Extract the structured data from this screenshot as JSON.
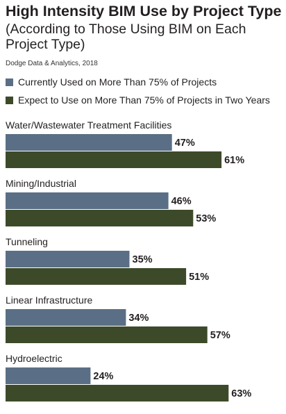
{
  "chart_data": {
    "type": "bar",
    "orientation": "horizontal",
    "title": "High Intensity BIM Use by Project Type",
    "subtitle": "(According to Those Using BIM on Each Project Type)",
    "source": "Dodge Data & Analytics, 2018",
    "categories": [
      "Water/Wastewater Treatment Facilities",
      "Mining/Industrial",
      "Tunneling",
      "Linear Infrastructure",
      "Hydroelectric"
    ],
    "series": [
      {
        "name": "Currently Used on More Than 75% of Projects",
        "values": [
          47,
          46,
          35,
          34,
          24
        ],
        "color": "#5a6f85"
      },
      {
        "name": "Expect to Use on More Than 75% of Projects in Two Years",
        "values": [
          61,
          53,
          51,
          57,
          63
        ],
        "color": "#3d4a2a"
      }
    ],
    "value_suffix": "%",
    "xlim": [
      0,
      100
    ],
    "grid": false,
    "legend_position": "top-left"
  }
}
